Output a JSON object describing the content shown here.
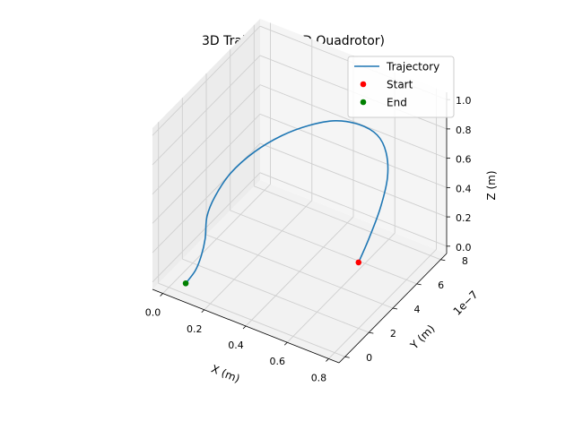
{
  "chart_data": {
    "type": "line3d",
    "title": "3D Trajectory (3D Quadrotor)",
    "xlabel": "X (m)",
    "ylabel": "Y (m)",
    "zlabel": "Z (m)",
    "y_offset_label": "1e−7",
    "xlim": [
      -0.05,
      0.85
    ],
    "ylim": [
      -0.5,
      8.5
    ],
    "zlim": [
      -0.05,
      1.05
    ],
    "xticks": [
      {
        "v": 0.0,
        "label": "0.0"
      },
      {
        "v": 0.2,
        "label": "0.2"
      },
      {
        "v": 0.4,
        "label": "0.4"
      },
      {
        "v": 0.6,
        "label": "0.6"
      },
      {
        "v": 0.8,
        "label": "0.8"
      }
    ],
    "yticks": [
      {
        "v": 0,
        "label": "0"
      },
      {
        "v": 2,
        "label": "2"
      },
      {
        "v": 4,
        "label": "4"
      },
      {
        "v": 6,
        "label": "6"
      },
      {
        "v": 8,
        "label": "8"
      }
    ],
    "zticks": [
      {
        "v": 0.0,
        "label": "0.0"
      },
      {
        "v": 0.2,
        "label": "0.2"
      },
      {
        "v": 0.4,
        "label": "0.4"
      },
      {
        "v": 0.6,
        "label": "0.6"
      },
      {
        "v": 0.8,
        "label": "0.8"
      },
      {
        "v": 1.0,
        "label": "1.0"
      }
    ],
    "grid": true,
    "legend_position": "top-right",
    "trajectory_color": "#1f77b4",
    "start_color": "#ff0000",
    "end_color": "#008000",
    "legend": [
      {
        "label": "Trajectory",
        "kind": "line"
      },
      {
        "label": "Start",
        "kind": "start"
      },
      {
        "label": "End",
        "kind": "end"
      }
    ],
    "trajectory_note_units": "x (m), y (1e-7 m), z (m)",
    "trajectory": [
      [
        0.8,
        2.0,
        0.4
      ],
      [
        0.815,
        2.6,
        0.52
      ],
      [
        0.83,
        3.3,
        0.68
      ],
      [
        0.83,
        3.9,
        0.84
      ],
      [
        0.8,
        4.3,
        0.96
      ],
      [
        0.74,
        4.6,
        1.02
      ],
      [
        0.64,
        4.8,
        1.02
      ],
      [
        0.52,
        4.9,
        0.97
      ],
      [
        0.4,
        4.8,
        0.88
      ],
      [
        0.28,
        4.6,
        0.76
      ],
      [
        0.17,
        4.2,
        0.62
      ],
      [
        0.09,
        3.6,
        0.48
      ],
      [
        0.05,
        3.0,
        0.35
      ],
      [
        0.04,
        2.5,
        0.25
      ],
      [
        0.06,
        2.0,
        0.15
      ],
      [
        0.07,
        1.5,
        0.08
      ],
      [
        0.07,
        1.0,
        0.02
      ],
      [
        0.07,
        0.2,
        0.0
      ]
    ],
    "start": [
      0.8,
      2.0,
      0.4
    ],
    "end": [
      0.07,
      0.2,
      0.0
    ]
  }
}
